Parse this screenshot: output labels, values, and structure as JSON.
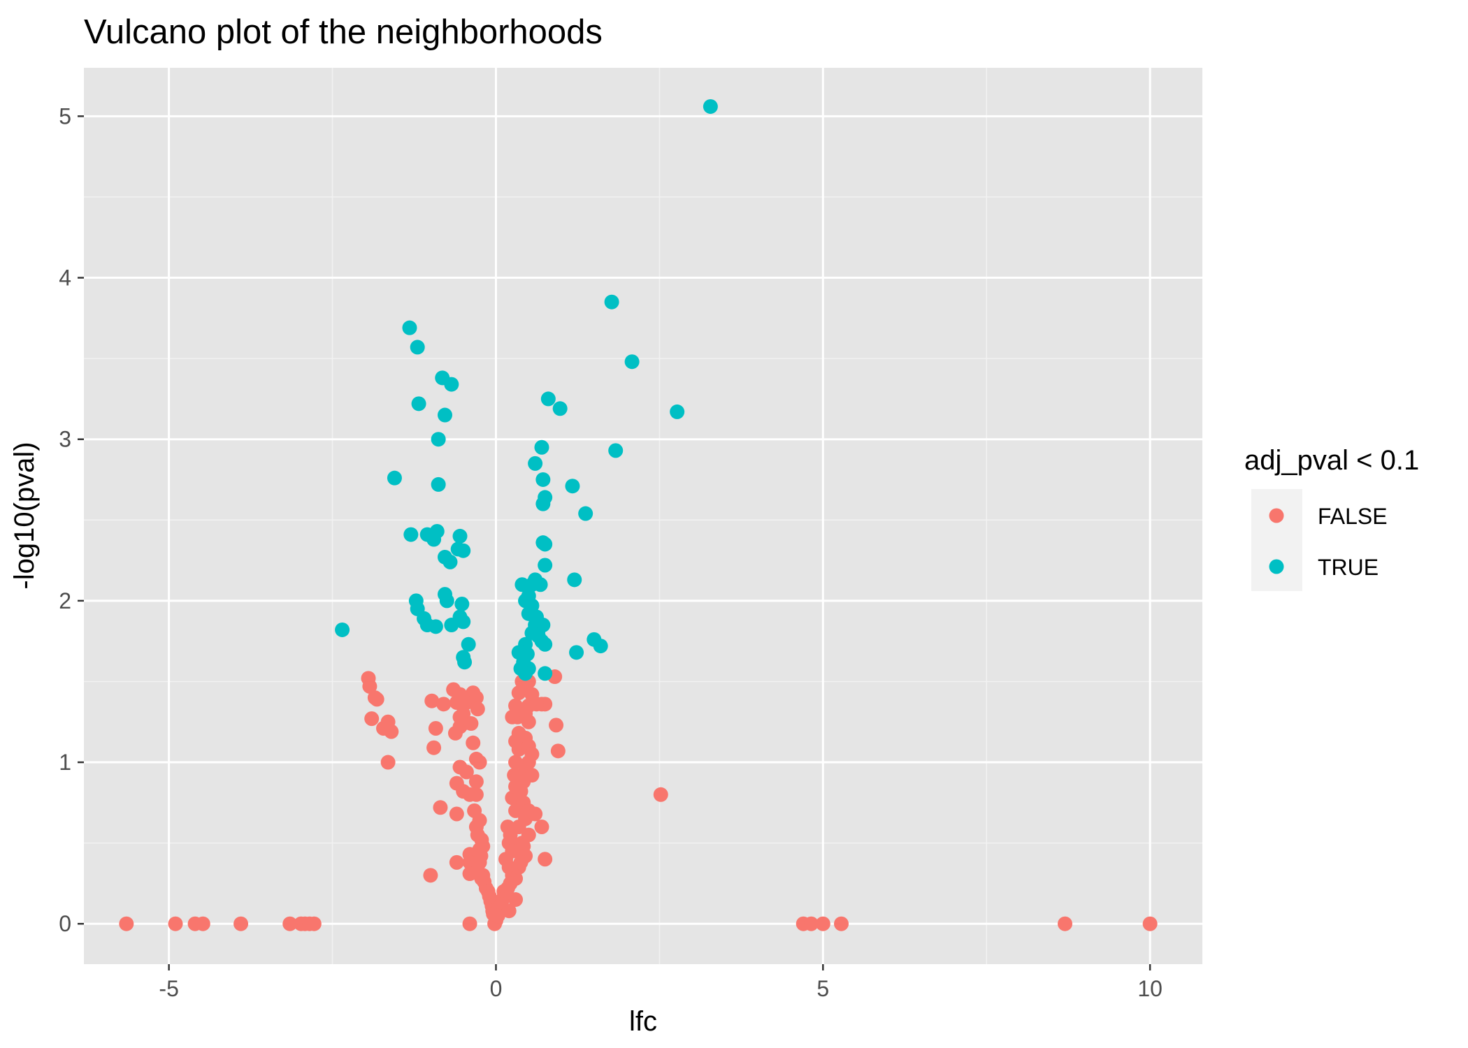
{
  "chart_data": {
    "type": "scatter",
    "title": "Vulcano plot of the neighborhoods",
    "xlabel": "lfc",
    "ylabel": "-log10(pval)",
    "xlim": [
      -6.3,
      10.8
    ],
    "ylim": [
      -0.25,
      5.3
    ],
    "x_ticks": [
      -5,
      0,
      5,
      10
    ],
    "y_ticks": [
      0,
      1,
      2,
      3,
      4,
      5
    ],
    "grid": true,
    "legend_position": "right",
    "legend": {
      "title": "adj_pval < 0.1",
      "entries": [
        "FALSE",
        "TRUE"
      ]
    },
    "colors": {
      "FALSE": "#F8766D",
      "TRUE": "#00BFC4",
      "panel": "#E5E5E5",
      "grid_major": "#FFFFFF",
      "grid_minor": "#F2F2F2"
    },
    "series": [
      {
        "name": "FALSE",
        "points": [
          [
            -5.65,
            0
          ],
          [
            -4.9,
            0
          ],
          [
            -4.6,
            0
          ],
          [
            -4.48,
            0
          ],
          [
            -3.9,
            0
          ],
          [
            -3.15,
            0
          ],
          [
            -2.98,
            0
          ],
          [
            -2.92,
            0
          ],
          [
            -2.85,
            0
          ],
          [
            -2.78,
            0
          ],
          [
            -0.4,
            0
          ],
          [
            -0.02,
            0
          ],
          [
            0.0,
            0.02
          ],
          [
            0.02,
            0.05
          ],
          [
            0.01,
            0.08
          ],
          [
            4.7,
            0
          ],
          [
            4.82,
            0
          ],
          [
            5.0,
            0
          ],
          [
            5.28,
            0
          ],
          [
            8.7,
            0
          ],
          [
            10.0,
            0
          ],
          [
            2.52,
            0.8
          ],
          [
            -1.95,
            1.52
          ],
          [
            -1.93,
            1.47
          ],
          [
            -1.85,
            1.4
          ],
          [
            -1.82,
            1.39
          ],
          [
            -1.9,
            1.27
          ],
          [
            -1.72,
            1.21
          ],
          [
            -1.65,
            1.25
          ],
          [
            -1.6,
            1.19
          ],
          [
            -1.65,
            1.0
          ],
          [
            -0.98,
            1.38
          ],
          [
            -0.92,
            1.21
          ],
          [
            -0.95,
            1.09
          ],
          [
            -0.8,
            1.36
          ],
          [
            -0.85,
            0.72
          ],
          [
            -1.0,
            0.3
          ],
          [
            -0.65,
            1.45
          ],
          [
            -0.6,
            1.37
          ],
          [
            -0.55,
            1.42
          ],
          [
            -0.5,
            1.3
          ],
          [
            -0.45,
            1.37
          ],
          [
            -0.62,
            1.18
          ],
          [
            -0.55,
            1.22
          ],
          [
            -0.5,
            1.24
          ],
          [
            -0.35,
            1.43
          ],
          [
            -0.3,
            1.4
          ],
          [
            -0.28,
            1.33
          ],
          [
            -0.38,
            1.24
          ],
          [
            -0.55,
            1.28
          ],
          [
            -0.35,
            1.12
          ],
          [
            -0.3,
            1.02
          ],
          [
            -0.25,
            1.0
          ],
          [
            -0.55,
            0.97
          ],
          [
            -0.45,
            0.94
          ],
          [
            -0.3,
            0.88
          ],
          [
            -0.6,
            0.87
          ],
          [
            -0.5,
            0.82
          ],
          [
            -0.4,
            0.8
          ],
          [
            -0.3,
            0.8
          ],
          [
            -0.6,
            0.68
          ],
          [
            -0.33,
            0.7
          ],
          [
            -0.25,
            0.64
          ],
          [
            -0.3,
            0.6
          ],
          [
            -0.28,
            0.55
          ],
          [
            -0.22,
            0.52
          ],
          [
            -0.25,
            0.46
          ],
          [
            -0.2,
            0.48
          ],
          [
            -0.23,
            0.42
          ],
          [
            -0.4,
            0.43
          ],
          [
            -0.4,
            0.38
          ],
          [
            -0.35,
            0.35
          ],
          [
            -0.4,
            0.31
          ],
          [
            -0.6,
            0.38
          ],
          [
            -0.25,
            0.38
          ],
          [
            -0.2,
            0.3
          ],
          [
            -0.18,
            0.26
          ],
          [
            -0.15,
            0.22
          ],
          [
            -0.12,
            0.2
          ],
          [
            -0.1,
            0.17
          ],
          [
            -0.08,
            0.14
          ],
          [
            -0.06,
            0.11
          ],
          [
            -0.05,
            0.08
          ],
          [
            -0.04,
            0.06
          ],
          [
            -0.28,
            0.33
          ],
          [
            -0.22,
            0.28
          ],
          [
            0.18,
            0.6
          ],
          [
            0.22,
            0.55
          ],
          [
            0.2,
            0.5
          ],
          [
            0.25,
            0.45
          ],
          [
            0.15,
            0.4
          ],
          [
            0.2,
            0.35
          ],
          [
            0.25,
            0.3
          ],
          [
            0.3,
            0.28
          ],
          [
            0.22,
            0.25
          ],
          [
            0.18,
            0.22
          ],
          [
            0.12,
            0.2
          ],
          [
            0.1,
            0.15
          ],
          [
            0.08,
            0.12
          ],
          [
            0.05,
            0.1
          ],
          [
            0.03,
            0.05
          ],
          [
            0.3,
            0.15
          ],
          [
            0.2,
            0.08
          ],
          [
            0.35,
            0.35
          ],
          [
            0.4,
            0.4
          ],
          [
            0.4,
            0.5
          ],
          [
            0.35,
            0.6
          ],
          [
            0.3,
            0.7
          ],
          [
            0.25,
            0.78
          ],
          [
            0.3,
            0.85
          ],
          [
            0.28,
            0.92
          ],
          [
            0.3,
            1.0
          ],
          [
            0.35,
            1.08
          ],
          [
            0.3,
            1.13
          ],
          [
            0.35,
            1.18
          ],
          [
            0.33,
            1.28
          ],
          [
            0.3,
            1.35
          ],
          [
            0.35,
            1.43
          ],
          [
            0.4,
            1.5
          ],
          [
            0.45,
            1.45
          ],
          [
            0.5,
            1.5
          ],
          [
            0.55,
            1.42
          ],
          [
            0.5,
            1.35
          ],
          [
            0.45,
            1.3
          ],
          [
            0.5,
            1.25
          ],
          [
            0.45,
            1.15
          ],
          [
            0.5,
            1.1
          ],
          [
            0.55,
            1.05
          ],
          [
            0.5,
            1.0
          ],
          [
            0.45,
            0.95
          ],
          [
            0.55,
            0.92
          ],
          [
            0.42,
            0.88
          ],
          [
            0.38,
            0.82
          ],
          [
            0.42,
            0.75
          ],
          [
            0.5,
            0.7
          ],
          [
            0.45,
            0.65
          ],
          [
            0.5,
            0.55
          ],
          [
            0.42,
            0.48
          ],
          [
            0.45,
            0.42
          ],
          [
            0.38,
            0.38
          ],
          [
            0.6,
            0.68
          ],
          [
            0.7,
            0.6
          ],
          [
            0.75,
            0.4
          ],
          [
            0.7,
            1.36
          ],
          [
            0.75,
            1.36
          ],
          [
            0.62,
            1.36
          ],
          [
            0.9,
            1.53
          ],
          [
            0.92,
            1.23
          ],
          [
            0.95,
            1.07
          ],
          [
            0.25,
            1.28
          ]
        ]
      },
      {
        "name": "TRUE",
        "points": [
          [
            3.28,
            5.06
          ],
          [
            1.77,
            3.85
          ],
          [
            2.08,
            3.48
          ],
          [
            2.77,
            3.17
          ],
          [
            1.83,
            2.93
          ],
          [
            0.8,
            3.25
          ],
          [
            0.98,
            3.19
          ],
          [
            0.7,
            2.95
          ],
          [
            0.6,
            2.85
          ],
          [
            0.72,
            2.75
          ],
          [
            0.75,
            2.64
          ],
          [
            0.72,
            2.6
          ],
          [
            1.17,
            2.71
          ],
          [
            1.37,
            2.54
          ],
          [
            0.72,
            2.36
          ],
          [
            0.75,
            2.35
          ],
          [
            0.75,
            2.22
          ],
          [
            1.2,
            2.13
          ],
          [
            0.6,
            2.13
          ],
          [
            0.55,
            2.1
          ],
          [
            0.68,
            2.1
          ],
          [
            0.4,
            2.1
          ],
          [
            0.5,
            2.03
          ],
          [
            0.45,
            2.0
          ],
          [
            0.55,
            1.97
          ],
          [
            0.5,
            1.92
          ],
          [
            0.62,
            1.9
          ],
          [
            0.6,
            1.85
          ],
          [
            0.72,
            1.85
          ],
          [
            0.65,
            1.82
          ],
          [
            0.55,
            1.8
          ],
          [
            0.65,
            1.78
          ],
          [
            0.7,
            1.75
          ],
          [
            0.75,
            1.73
          ],
          [
            0.45,
            1.73
          ],
          [
            0.35,
            1.68
          ],
          [
            0.4,
            1.68
          ],
          [
            0.48,
            1.67
          ],
          [
            0.42,
            1.62
          ],
          [
            0.38,
            1.58
          ],
          [
            0.5,
            1.58
          ],
          [
            0.45,
            1.55
          ],
          [
            0.75,
            1.55
          ],
          [
            1.23,
            1.68
          ],
          [
            1.5,
            1.76
          ],
          [
            1.6,
            1.72
          ],
          [
            -1.32,
            3.69
          ],
          [
            -1.2,
            3.57
          ],
          [
            -0.82,
            3.38
          ],
          [
            -0.68,
            3.34
          ],
          [
            -1.18,
            3.22
          ],
          [
            -0.78,
            3.15
          ],
          [
            -0.88,
            3.0
          ],
          [
            -1.55,
            2.76
          ],
          [
            -0.88,
            2.72
          ],
          [
            -1.3,
            2.41
          ],
          [
            -1.05,
            2.41
          ],
          [
            -0.9,
            2.43
          ],
          [
            -0.95,
            2.38
          ],
          [
            -0.55,
            2.4
          ],
          [
            -0.58,
            2.32
          ],
          [
            -0.5,
            2.31
          ],
          [
            -0.78,
            2.27
          ],
          [
            -0.7,
            2.24
          ],
          [
            -1.22,
            2.0
          ],
          [
            -1.2,
            1.95
          ],
          [
            -0.78,
            2.04
          ],
          [
            -0.75,
            2.0
          ],
          [
            -0.52,
            1.98
          ],
          [
            -1.1,
            1.89
          ],
          [
            -1.05,
            1.85
          ],
          [
            -0.92,
            1.84
          ],
          [
            -0.68,
            1.85
          ],
          [
            -0.55,
            1.9
          ],
          [
            -0.5,
            1.87
          ],
          [
            -2.35,
            1.82
          ],
          [
            -0.42,
            1.73
          ],
          [
            -0.5,
            1.65
          ],
          [
            -0.48,
            1.62
          ]
        ]
      }
    ]
  }
}
